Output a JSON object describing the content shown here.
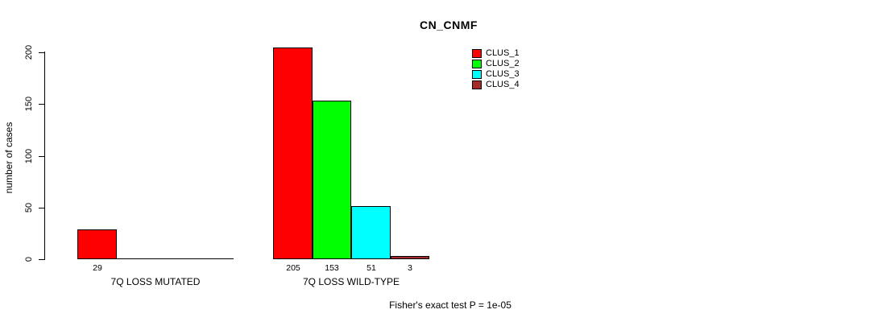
{
  "title": "CN_CNMF",
  "footer_annotation": "Fisher's exact test P = 1e-05",
  "chart_data": {
    "type": "bar",
    "title": "CN_CNMF",
    "xlabel": "",
    "ylabel": "number of cases",
    "ylim": [
      0,
      200
    ],
    "yticks": [
      0,
      50,
      100,
      150,
      200
    ],
    "grid": false,
    "legend_position": "top-right",
    "categories": [
      "7Q LOSS MUTATED",
      "7Q LOSS WILD-TYPE"
    ],
    "series": [
      {
        "name": "CLUS_1",
        "color": "#ff0000",
        "values": [
          29,
          205
        ]
      },
      {
        "name": "CLUS_2",
        "color": "#00ff00",
        "values": [
          0,
          153
        ]
      },
      {
        "name": "CLUS_3",
        "color": "#00ffff",
        "values": [
          0,
          51
        ]
      },
      {
        "name": "CLUS_4",
        "color": "#a52a2a",
        "values": [
          0,
          3
        ]
      }
    ],
    "bar_value_labels": [
      [
        29,
        null,
        null,
        null
      ],
      [
        205,
        153,
        51,
        3
      ]
    ],
    "annotation": "Fisher's exact test P = 1e-05"
  }
}
